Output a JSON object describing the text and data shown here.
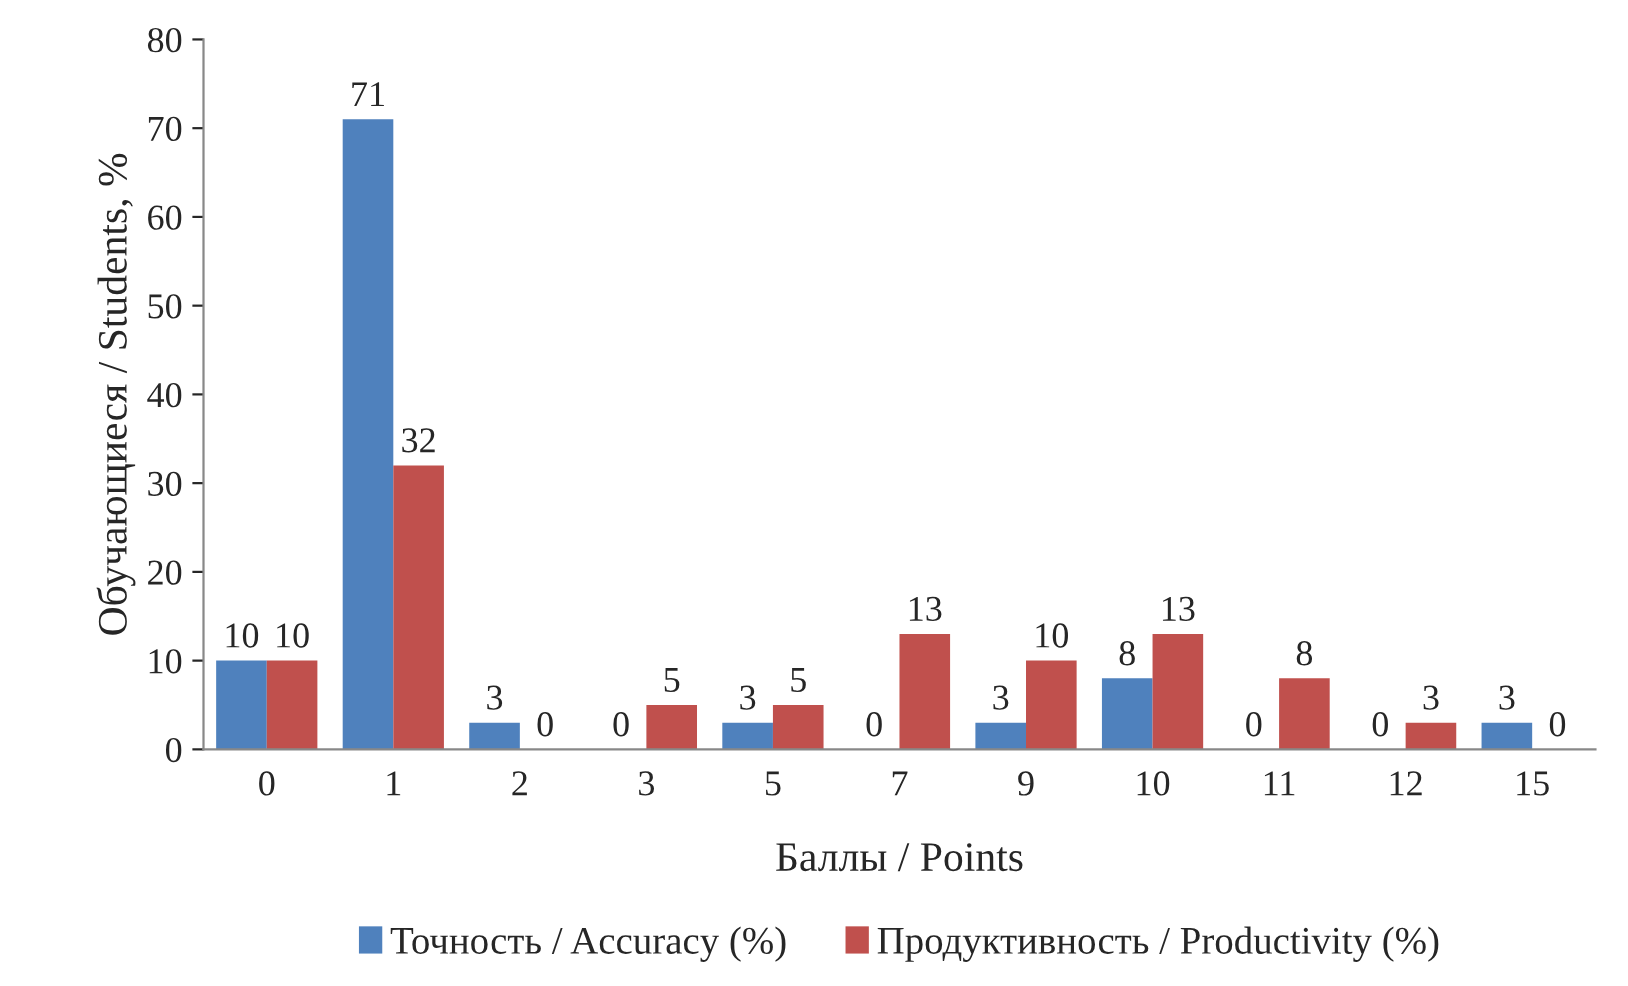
{
  "chart_data": {
    "type": "bar",
    "xlabel": "Баллы / Points",
    "ylabel": "Обучающиеся / Students, %",
    "categories": [
      "0",
      "1",
      "2",
      "3",
      "5",
      "7",
      "9",
      "10",
      "11",
      "12",
      "15"
    ],
    "series": [
      {
        "name": "Точность / Accuracy (%)",
        "color": "#4f81bd",
        "values": [
          10,
          71,
          3,
          0,
          3,
          0,
          3,
          8,
          0,
          0,
          3
        ]
      },
      {
        "name": "Продуктивность / Productivity (%)",
        "color": "#c0504d",
        "values": [
          10,
          32,
          0,
          5,
          5,
          13,
          10,
          13,
          8,
          3,
          0
        ]
      }
    ],
    "ylim": [
      0,
      80
    ],
    "yticks": [
      0,
      10,
      20,
      30,
      40,
      50,
      60,
      70,
      80
    ],
    "data_labels": true,
    "legend": "bottom",
    "grid": false
  }
}
